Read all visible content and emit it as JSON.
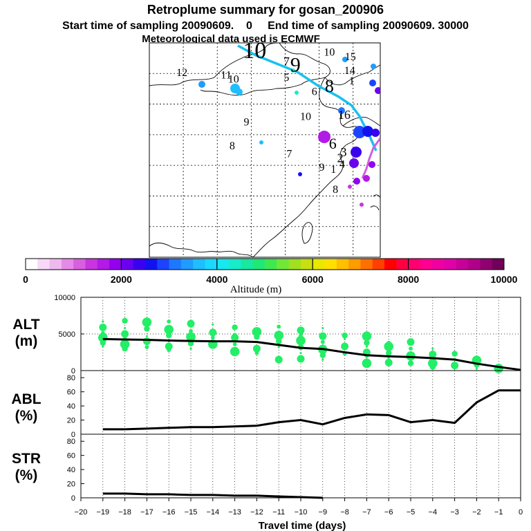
{
  "header": {
    "title": "Retroplume summary for gosan_200906",
    "sampling_line": "Start time of sampling 20090609.    0     End time of sampling 20090609. 30000",
    "met_line": "Meteorological data used is ECMWF"
  },
  "colorbar": {
    "label": "Altitude  (m)",
    "ticks": [
      "0",
      "2000",
      "4000",
      "6000",
      "8000",
      "10000"
    ],
    "range": [
      0,
      10000
    ],
    "colors": [
      "#ffffff",
      "#f7d9f7",
      "#efb9ef",
      "#e58ae8",
      "#d85fe0",
      "#c835e0",
      "#b21ae6",
      "#9400f0",
      "#6a00f0",
      "#3a00f0",
      "#1212f0",
      "#1c44ff",
      "#1e78ff",
      "#1e9cff",
      "#1ebeff",
      "#1ad8ff",
      "#18e8f0",
      "#18ecc8",
      "#18e8a0",
      "#20e878",
      "#40e850",
      "#70e838",
      "#a0e020",
      "#c8e010",
      "#e8e800",
      "#ffe000",
      "#ffc000",
      "#ff9c00",
      "#ff7000",
      "#ff4000",
      "#ff0000",
      "#ff0040",
      "#ff0070",
      "#ff0090",
      "#f000a0",
      "#e000a8",
      "#c8009a",
      "#b0008a",
      "#900070",
      "#700058"
    ]
  },
  "map": {
    "labels": [
      {
        "text": "10",
        "lon": 105.5,
        "lat": 47.5,
        "size": 34
      },
      {
        "text": "7",
        "lon": 110.2,
        "lat": 46.3,
        "size": 18
      },
      {
        "text": "9",
        "lon": 111.5,
        "lat": 45.3,
        "size": 30
      },
      {
        "text": "10",
        "lon": 116.5,
        "lat": 47.9,
        "size": 16
      },
      {
        "text": "15",
        "lon": 119.6,
        "lat": 47.2,
        "size": 16
      },
      {
        "text": "12",
        "lon": 94.8,
        "lat": 44.6,
        "size": 16
      },
      {
        "text": "11",
        "lon": 101.3,
        "lat": 44.2,
        "size": 16
      },
      {
        "text": "10",
        "lon": 102.4,
        "lat": 43.5,
        "size": 16
      },
      {
        "text": "5",
        "lon": 110.2,
        "lat": 43.8,
        "size": 16
      },
      {
        "text": "14",
        "lon": 119.5,
        "lat": 44.9,
        "size": 16
      },
      {
        "text": "1",
        "lon": 119.8,
        "lat": 43.2,
        "size": 16
      },
      {
        "text": "8",
        "lon": 116.5,
        "lat": 42.0,
        "size": 26
      },
      {
        "text": "6",
        "lon": 114.3,
        "lat": 41.5,
        "size": 16
      },
      {
        "text": "10",
        "lon": 113.0,
        "lat": 37.4,
        "size": 16
      },
      {
        "text": "16",
        "lon": 118.7,
        "lat": 37.6,
        "size": 18
      },
      {
        "text": "9",
        "lon": 104.3,
        "lat": 36.5,
        "size": 16
      },
      {
        "text": "8",
        "lon": 102.2,
        "lat": 32.6,
        "size": 16
      },
      {
        "text": "7",
        "lon": 110.6,
        "lat": 31.3,
        "size": 16
      },
      {
        "text": "6",
        "lon": 117.0,
        "lat": 32.7,
        "size": 22
      },
      {
        "text": "3",
        "lon": 118.6,
        "lat": 31.5,
        "size": 18
      },
      {
        "text": "2",
        "lon": 118.1,
        "lat": 30.5,
        "size": 18
      },
      {
        "text": "4",
        "lon": 118.4,
        "lat": 29.6,
        "size": 16
      },
      {
        "text": "9",
        "lon": 115.4,
        "lat": 29.1,
        "size": 16
      },
      {
        "text": "1",
        "lon": 117.1,
        "lat": 28.8,
        "size": 16
      },
      {
        "text": "8",
        "lon": 117.4,
        "lat": 25.5,
        "size": 16
      }
    ]
  },
  "panels": {
    "alt": {
      "label_line1": "ALT",
      "label_line2": "(m)",
      "yticks": [
        "0",
        "5000",
        "10000"
      ]
    },
    "abl": {
      "label_line1": "ABL",
      "label_line2": "(%)",
      "yticks": [
        "0",
        "20",
        "40",
        "60",
        "80"
      ]
    },
    "str": {
      "label_line1": "STR",
      "label_line2": "(%)",
      "yticks": [
        "0",
        "20",
        "40",
        "60",
        "80"
      ]
    }
  },
  "xaxis": {
    "label": "Travel time (days)",
    "ticks": [
      "−20",
      "−19",
      "−18",
      "−17",
      "−16",
      "−15",
      "−14",
      "−13",
      "−12",
      "−11",
      "−10",
      "−9",
      "−8",
      "−7",
      "−6",
      "−5",
      "−4",
      "−3",
      "−2",
      "−1",
      "0"
    ]
  },
  "chart_data": [
    {
      "type": "line",
      "title": "ALT",
      "xlabel": "Travel time (days)",
      "ylabel": "ALT (m)",
      "xlim": [
        -20,
        0
      ],
      "ylim": [
        0,
        10000
      ],
      "x": [
        -19,
        -18,
        -17,
        -16,
        -15,
        -14,
        -13,
        -12,
        -11,
        -10,
        -9,
        -8,
        -7,
        -6,
        -5,
        -4,
        -3,
        -2,
        -1,
        0
      ],
      "series": [
        {
          "name": "mean altitude",
          "values": [
            4300,
            4250,
            4200,
            4100,
            4050,
            4000,
            4000,
            3900,
            3500,
            3100,
            2950,
            2500,
            2100,
            1950,
            1850,
            1700,
            1500,
            950,
            500,
            100
          ]
        }
      ],
      "clusters": {
        "x": [
          -19,
          -18,
          -17,
          -16,
          -15,
          -14,
          -13,
          -12,
          -11,
          -10,
          -9,
          -8,
          -7,
          -6,
          -5,
          -4,
          -3,
          -2,
          -1
        ],
        "y": [
          [
            6700,
            5900,
            5100,
            4500,
            3800,
            3300
          ],
          [
            6800,
            5800,
            5000,
            4300,
            3600,
            3000
          ],
          [
            6600,
            5700,
            4700,
            4000,
            3200
          ],
          [
            6700,
            5600,
            4800,
            4000,
            3300,
            2800
          ],
          [
            6400,
            5400,
            4600,
            3700,
            3000
          ],
          [
            6300,
            5200,
            4500,
            3600
          ],
          [
            5900,
            5000,
            4500,
            3600,
            2600
          ],
          [
            5300,
            4600,
            3900,
            3000,
            2400
          ],
          [
            6000,
            4800,
            4000,
            3200,
            1500
          ],
          [
            5500,
            4800,
            4100,
            3200,
            2400,
            1600
          ],
          [
            5800,
            4700,
            3900,
            2900,
            2100,
            1500
          ],
          [
            4800,
            4300,
            3300,
            2300
          ],
          [
            4700,
            3800,
            3300,
            2500,
            2000,
            1000
          ],
          [
            3800,
            3300,
            2400,
            1700,
            1100
          ],
          [
            3900,
            3000,
            2000,
            1000
          ],
          [
            3000,
            2200,
            1700,
            1000,
            500
          ],
          [
            2300,
            1600,
            700,
            600
          ],
          [
            1400,
            800,
            300
          ],
          [
            600,
            300
          ]
        ]
      }
    },
    {
      "type": "line",
      "title": "ABL",
      "xlabel": "Travel time (days)",
      "ylabel": "ABL (%)",
      "xlim": [
        -20,
        0
      ],
      "ylim": [
        0,
        90
      ],
      "x": [
        -19,
        -18,
        -17,
        -16,
        -15,
        -14,
        -13,
        -12,
        -11,
        -10,
        -9,
        -8,
        -7,
        -6,
        -5,
        -4,
        -3,
        -2,
        -1,
        0
      ],
      "series": [
        {
          "name": "ABL fraction",
          "values": [
            7,
            7,
            8,
            9,
            10,
            10,
            11,
            12,
            17,
            20,
            14,
            23,
            28,
            27,
            17,
            20,
            16,
            45,
            62,
            62
          ]
        }
      ]
    },
    {
      "type": "line",
      "title": "STR",
      "xlabel": "Travel time (days)",
      "ylabel": "STR (%)",
      "xlim": [
        -20,
        0
      ],
      "ylim": [
        0,
        90
      ],
      "x": [
        -19,
        -18,
        -17,
        -16,
        -15,
        -14,
        -13,
        -12,
        -11,
        -10,
        -9
      ],
      "series": [
        {
          "name": "stratospheric fraction",
          "values": [
            6,
            6,
            5,
            5,
            4,
            4,
            3,
            3,
            2,
            1,
            0
          ]
        }
      ]
    }
  ]
}
